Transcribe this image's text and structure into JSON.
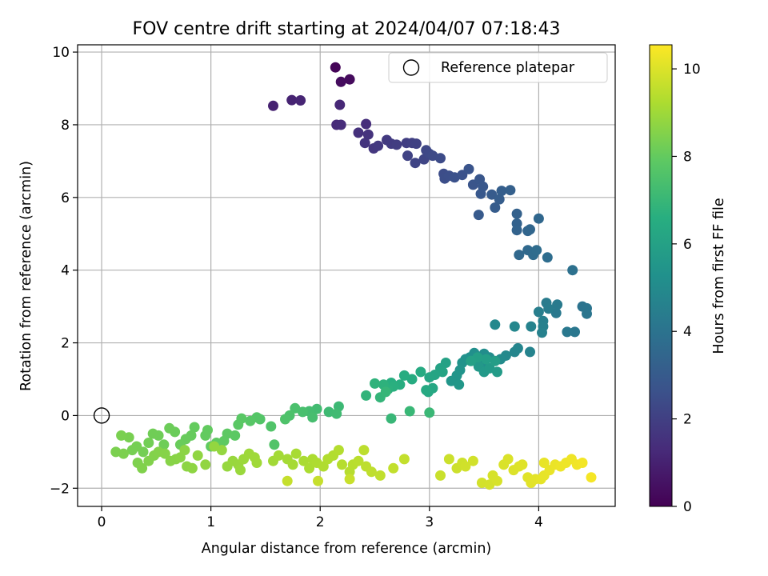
{
  "chart_data": {
    "type": "scatter",
    "title": "FOV centre drift starting at 2024/04/07 07:18:43",
    "xlabel": "Angular distance from reference (arcmin)",
    "ylabel": "Rotation from reference (arcmin)",
    "xlim": [
      -0.22,
      4.7
    ],
    "ylim": [
      -2.5,
      10.2
    ],
    "xticks": [
      0,
      1,
      2,
      3,
      4
    ],
    "yticks": [
      -2,
      0,
      2,
      4,
      6,
      8,
      10
    ],
    "ytick_labels": [
      "−2",
      "0",
      "2",
      "4",
      "6",
      "8",
      "10"
    ],
    "grid": true,
    "legend": {
      "location": "upper right",
      "entries": [
        "Reference platepar"
      ]
    },
    "reference_point": {
      "x": 0,
      "y": 0,
      "label": "Reference platepar"
    },
    "colorbar": {
      "label": "Hours from first FF file",
      "colormap": "viridis",
      "range": [
        0,
        10.55
      ],
      "ticks": [
        0,
        2,
        4,
        6,
        8,
        10
      ]
    },
    "series": [
      {
        "values": [
          [
            2.14,
            9.58,
            0.1
          ],
          [
            2.27,
            9.25,
            0.3
          ],
          [
            2.19,
            9.18,
            0.35
          ],
          [
            1.57,
            8.52,
            1.0
          ],
          [
            1.74,
            8.68,
            1.05
          ],
          [
            1.82,
            8.67,
            1.1
          ],
          [
            2.18,
            8.55,
            1.2
          ],
          [
            2.15,
            8.0,
            1.3
          ],
          [
            2.19,
            8.0,
            1.35
          ],
          [
            2.42,
            8.02,
            1.4
          ],
          [
            2.35,
            7.78,
            1.5
          ],
          [
            2.44,
            7.73,
            1.55
          ],
          [
            2.41,
            7.5,
            1.6
          ],
          [
            2.49,
            7.35,
            1.7
          ],
          [
            2.53,
            7.42,
            1.75
          ],
          [
            2.61,
            7.58,
            1.8
          ],
          [
            2.65,
            7.48,
            1.85
          ],
          [
            2.7,
            7.45,
            1.9
          ],
          [
            2.79,
            7.5,
            1.95
          ],
          [
            2.84,
            7.5,
            2.0
          ],
          [
            2.88,
            7.48,
            2.05
          ],
          [
            2.8,
            7.15,
            2.1
          ],
          [
            2.87,
            6.95,
            2.15
          ],
          [
            2.95,
            7.05,
            2.2
          ],
          [
            2.97,
            7.3,
            2.25
          ],
          [
            3.0,
            7.2,
            2.3
          ],
          [
            3.03,
            7.15,
            2.35
          ],
          [
            3.1,
            7.08,
            2.4
          ],
          [
            3.13,
            6.65,
            2.45
          ],
          [
            3.14,
            6.52,
            2.5
          ],
          [
            3.18,
            6.6,
            2.55
          ],
          [
            3.23,
            6.55,
            2.6
          ],
          [
            3.3,
            6.62,
            2.65
          ],
          [
            3.36,
            6.78,
            2.7
          ],
          [
            3.4,
            6.35,
            2.75
          ],
          [
            3.46,
            6.5,
            2.8
          ],
          [
            3.49,
            6.3,
            2.85
          ],
          [
            3.47,
            6.1,
            2.9
          ],
          [
            3.45,
            5.52,
            2.95
          ],
          [
            3.57,
            6.08,
            3.0
          ],
          [
            3.6,
            5.72,
            3.05
          ],
          [
            3.64,
            5.95,
            3.1
          ],
          [
            3.66,
            6.18,
            3.15
          ],
          [
            3.74,
            6.2,
            3.2
          ],
          [
            3.8,
            5.55,
            3.25
          ],
          [
            3.8,
            5.28,
            3.3
          ],
          [
            3.8,
            5.1,
            3.35
          ],
          [
            3.9,
            5.08,
            3.4
          ],
          [
            3.92,
            5.12,
            3.45
          ],
          [
            4.0,
            5.42,
            3.5
          ],
          [
            3.82,
            4.42,
            3.55
          ],
          [
            3.9,
            4.55,
            3.6
          ],
          [
            3.95,
            4.42,
            3.65
          ],
          [
            3.98,
            4.55,
            3.7
          ],
          [
            4.08,
            4.35,
            3.75
          ],
          [
            4.31,
            4.0,
            3.9
          ],
          [
            4.4,
            3.0,
            4.0
          ],
          [
            4.44,
            2.95,
            4.05
          ],
          [
            4.44,
            2.8,
            4.1
          ],
          [
            4.33,
            2.3,
            4.15
          ],
          [
            4.26,
            2.3,
            4.2
          ],
          [
            4.16,
            2.82,
            4.25
          ],
          [
            4.17,
            3.05,
            4.3
          ],
          [
            4.07,
            3.1,
            4.35
          ],
          [
            4.09,
            2.94,
            4.4
          ],
          [
            4.0,
            2.85,
            4.45
          ],
          [
            4.04,
            2.6,
            4.5
          ],
          [
            4.04,
            2.45,
            4.55
          ],
          [
            4.03,
            2.28,
            4.6
          ],
          [
            3.93,
            2.45,
            4.65
          ],
          [
            3.92,
            1.75,
            4.7
          ],
          [
            3.81,
            1.85,
            4.75
          ],
          [
            3.78,
            1.75,
            4.8
          ],
          [
            3.78,
            2.45,
            4.85
          ],
          [
            3.6,
            2.5,
            4.9
          ],
          [
            3.7,
            1.65,
            4.95
          ],
          [
            3.65,
            1.55,
            5.0
          ],
          [
            3.55,
            1.6,
            5.05
          ],
          [
            3.5,
            1.7,
            5.1
          ],
          [
            3.48,
            1.45,
            5.15
          ],
          [
            3.41,
            1.72,
            5.2
          ],
          [
            3.37,
            1.6,
            5.25
          ],
          [
            3.33,
            1.55,
            5.3
          ],
          [
            3.3,
            1.45,
            5.35
          ],
          [
            3.28,
            1.25,
            5.4
          ],
          [
            3.25,
            1.1,
            5.45
          ],
          [
            3.2,
            0.95,
            5.5
          ],
          [
            3.27,
            0.85,
            5.55
          ],
          [
            3.45,
            1.35,
            5.6
          ],
          [
            3.5,
            1.2,
            5.65
          ],
          [
            3.55,
            1.3,
            5.7
          ],
          [
            3.62,
            1.2,
            5.75
          ],
          [
            3.6,
            1.5,
            5.8
          ],
          [
            3.52,
            1.55,
            5.85
          ],
          [
            3.44,
            1.6,
            5.9
          ],
          [
            3.38,
            1.5,
            5.95
          ],
          [
            3.15,
            1.45,
            6.0
          ],
          [
            3.1,
            1.3,
            6.05
          ],
          [
            3.12,
            1.2,
            6.1
          ],
          [
            3.05,
            1.12,
            6.15
          ],
          [
            3.0,
            1.05,
            6.2
          ],
          [
            3.03,
            0.75,
            6.25
          ],
          [
            2.99,
            0.65,
            6.3
          ],
          [
            2.97,
            0.7,
            6.35
          ],
          [
            2.92,
            1.2,
            6.4
          ],
          [
            2.84,
            1.0,
            6.45
          ],
          [
            2.77,
            1.1,
            6.5
          ],
          [
            2.73,
            0.85,
            6.55
          ],
          [
            2.65,
            0.9,
            6.6
          ],
          [
            2.67,
            0.8,
            6.65
          ],
          [
            2.62,
            0.72,
            6.7
          ],
          [
            2.58,
            0.85,
            6.75
          ],
          [
            2.5,
            0.88,
            6.8
          ],
          [
            2.42,
            0.55,
            6.85
          ],
          [
            2.55,
            0.5,
            6.9
          ],
          [
            2.6,
            0.65,
            6.95
          ],
          [
            2.65,
            -0.08,
            7.0
          ],
          [
            2.82,
            0.12,
            7.02
          ],
          [
            3.0,
            0.08,
            7.05
          ],
          [
            2.17,
            0.25,
            7.1
          ],
          [
            2.08,
            0.1,
            7.15
          ],
          [
            2.15,
            0.05,
            7.2
          ],
          [
            1.97,
            0.18,
            7.25
          ],
          [
            1.9,
            0.12,
            7.3
          ],
          [
            1.93,
            -0.05,
            7.35
          ],
          [
            1.84,
            0.1,
            7.4
          ],
          [
            1.77,
            0.2,
            7.45
          ],
          [
            1.72,
            0.0,
            7.5
          ],
          [
            1.68,
            -0.1,
            7.55
          ],
          [
            1.55,
            -0.3,
            7.6
          ],
          [
            1.58,
            -0.8,
            7.62
          ],
          [
            1.45,
            -0.1,
            7.65
          ],
          [
            1.42,
            -0.05,
            7.7
          ],
          [
            1.36,
            -0.15,
            7.75
          ],
          [
            1.28,
            -0.08,
            7.8
          ],
          [
            1.25,
            -0.25,
            7.82
          ],
          [
            1.22,
            -0.55,
            7.85
          ],
          [
            1.15,
            -0.5,
            7.88
          ],
          [
            1.12,
            -0.7,
            7.9
          ],
          [
            1.05,
            -0.75,
            7.92
          ],
          [
            1.0,
            -0.85,
            7.95
          ],
          [
            0.97,
            -0.4,
            7.98
          ],
          [
            0.95,
            -0.55,
            8.0
          ],
          [
            0.85,
            -0.32,
            8.02
          ],
          [
            0.82,
            -0.55,
            8.05
          ],
          [
            0.77,
            -0.65,
            8.08
          ],
          [
            0.72,
            -0.8,
            8.1
          ],
          [
            0.67,
            -0.45,
            8.12
          ],
          [
            0.62,
            -0.35,
            8.15
          ],
          [
            0.57,
            -0.8,
            8.18
          ],
          [
            0.52,
            -0.55,
            8.2
          ],
          [
            0.47,
            -0.5,
            8.22
          ],
          [
            0.43,
            -0.75,
            8.25
          ],
          [
            0.38,
            -1.0,
            8.28
          ],
          [
            0.32,
            -0.85,
            8.3
          ],
          [
            0.28,
            -0.95,
            8.32
          ],
          [
            0.25,
            -0.6,
            8.35
          ],
          [
            0.18,
            -0.55,
            8.38
          ],
          [
            0.13,
            -1.0,
            8.4
          ],
          [
            0.2,
            -1.05,
            8.42
          ],
          [
            0.33,
            -1.3,
            8.45
          ],
          [
            0.37,
            -1.45,
            8.48
          ],
          [
            0.43,
            -1.25,
            8.5
          ],
          [
            0.48,
            -1.1,
            8.52
          ],
          [
            0.52,
            -1.0,
            8.55
          ],
          [
            0.58,
            -1.05,
            8.58
          ],
          [
            0.63,
            -1.25,
            8.6
          ],
          [
            0.68,
            -1.2,
            8.62
          ],
          [
            0.72,
            -1.15,
            8.65
          ],
          [
            0.76,
            -0.95,
            8.68
          ],
          [
            0.78,
            -1.4,
            8.7
          ],
          [
            0.83,
            -1.45,
            8.72
          ],
          [
            0.88,
            -1.1,
            8.75
          ],
          [
            0.95,
            -1.35,
            8.78
          ],
          [
            1.03,
            -0.85,
            8.8
          ],
          [
            1.1,
            -0.95,
            8.82
          ],
          [
            1.15,
            -1.4,
            8.85
          ],
          [
            1.2,
            -1.25,
            8.88
          ],
          [
            1.25,
            -1.35,
            8.9
          ],
          [
            1.27,
            -1.5,
            8.92
          ],
          [
            1.3,
            -1.2,
            8.95
          ],
          [
            1.35,
            -1.05,
            8.98
          ],
          [
            1.4,
            -1.15,
            9.0
          ],
          [
            1.42,
            -1.3,
            9.02
          ],
          [
            1.57,
            -1.25,
            9.05
          ],
          [
            1.62,
            -1.1,
            9.08
          ],
          [
            1.7,
            -1.2,
            9.1
          ],
          [
            1.75,
            -1.35,
            9.12
          ],
          [
            1.78,
            -1.05,
            9.15
          ],
          [
            1.85,
            -1.25,
            9.18
          ],
          [
            1.9,
            -1.45,
            9.2
          ],
          [
            1.93,
            -1.2,
            9.22
          ],
          [
            1.97,
            -1.3,
            9.25
          ],
          [
            2.03,
            -1.4,
            9.28
          ],
          [
            2.07,
            -1.2,
            9.3
          ],
          [
            2.12,
            -1.1,
            9.32
          ],
          [
            2.17,
            -0.95,
            9.35
          ],
          [
            2.2,
            -1.35,
            9.38
          ],
          [
            2.27,
            -1.55,
            9.4
          ],
          [
            2.3,
            -1.35,
            9.42
          ],
          [
            2.35,
            -1.25,
            9.45
          ],
          [
            2.4,
            -0.95,
            9.48
          ],
          [
            2.42,
            -1.4,
            9.5
          ],
          [
            2.47,
            -1.55,
            9.52
          ],
          [
            2.55,
            -1.65,
            9.55
          ],
          [
            2.67,
            -1.45,
            9.58
          ],
          [
            2.77,
            -1.2,
            9.6
          ],
          [
            1.7,
            -1.8,
            9.62
          ],
          [
            1.98,
            -1.8,
            9.65
          ],
          [
            2.27,
            -1.75,
            9.68
          ],
          [
            3.1,
            -1.65,
            9.7
          ],
          [
            3.18,
            -1.2,
            9.72
          ],
          [
            3.25,
            -1.45,
            9.75
          ],
          [
            3.3,
            -1.3,
            9.78
          ],
          [
            3.33,
            -1.4,
            9.8
          ],
          [
            3.4,
            -1.25,
            9.82
          ],
          [
            3.48,
            -1.85,
            9.85
          ],
          [
            3.55,
            -1.9,
            9.88
          ],
          [
            3.58,
            -1.65,
            9.9
          ],
          [
            3.62,
            -1.8,
            9.92
          ],
          [
            3.68,
            -1.35,
            9.95
          ],
          [
            3.72,
            -1.2,
            9.98
          ],
          [
            3.77,
            -1.5,
            10.0
          ],
          [
            3.82,
            -1.4,
            10.02
          ],
          [
            3.85,
            -1.35,
            10.05
          ],
          [
            3.9,
            -1.7,
            10.08
          ],
          [
            3.93,
            -1.85,
            10.1
          ],
          [
            3.97,
            -1.75,
            10.12
          ],
          [
            4.02,
            -1.75,
            10.15
          ],
          [
            4.05,
            -1.65,
            10.18
          ],
          [
            4.05,
            -1.3,
            10.2
          ],
          [
            4.1,
            -1.5,
            10.22
          ],
          [
            4.15,
            -1.35,
            10.25
          ],
          [
            4.2,
            -1.4,
            10.28
          ],
          [
            4.25,
            -1.3,
            10.3
          ],
          [
            4.3,
            -1.2,
            10.32
          ],
          [
            4.35,
            -1.35,
            10.35
          ],
          [
            4.4,
            -1.3,
            10.38
          ],
          [
            4.48,
            -1.7,
            10.42
          ]
        ]
      }
    ]
  }
}
